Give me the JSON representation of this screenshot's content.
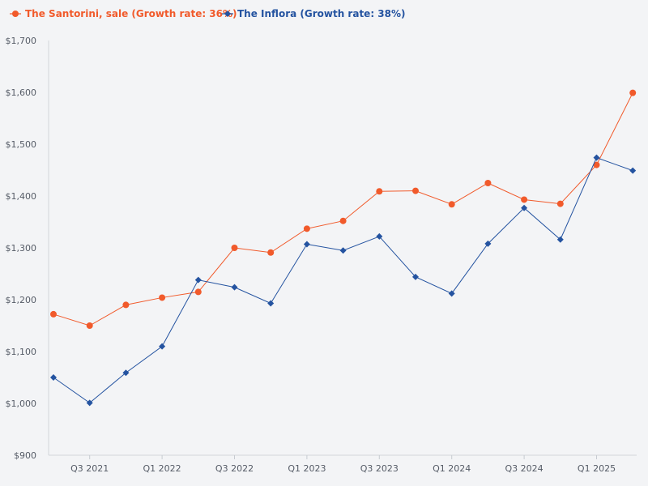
{
  "chart_data": {
    "type": "line",
    "title": "",
    "xlabel": "",
    "ylabel": "",
    "ylim": [
      900,
      1700
    ],
    "yticks": [
      900,
      1000,
      1100,
      1200,
      1300,
      1400,
      1500,
      1600,
      1700
    ],
    "ytick_labels": [
      "$900",
      "$1,000",
      "$1,100",
      "$1,200",
      "$1,300",
      "$1,400",
      "$1,500",
      "$1,600",
      "$1,700"
    ],
    "x_range": [
      0,
      16.35
    ],
    "xtick_positions": [
      1,
      3,
      5,
      7,
      9,
      11,
      13,
      15
    ],
    "xtick_labels": [
      "Q3 2021",
      "Q1 2022",
      "Q3 2022",
      "Q1 2023",
      "Q3 2023",
      "Q1 2024",
      "Q3 2024",
      "Q1 2025"
    ],
    "x": [
      0,
      1,
      2,
      3,
      4,
      5,
      6,
      7,
      8,
      9,
      10,
      11,
      12,
      13,
      14,
      15,
      16
    ],
    "legend_position": "top-left",
    "grid": false,
    "series": [
      {
        "name": "The Santorini, sale (Growth rate: 36%)",
        "color": "#f15a2b",
        "marker": "circle",
        "values": [
          1172,
          1150,
          1190,
          1204,
          1215,
          1300,
          1291,
          1337,
          1352,
          1409,
          1410,
          1384,
          1425,
          1393,
          1385,
          1460,
          1599
        ]
      },
      {
        "name": "The Inflora (Growth rate: 38%)",
        "color": "#2453a0",
        "marker": "diamond",
        "values": [
          1050,
          1001,
          1059,
          1110,
          1238,
          1224,
          1193,
          1307,
          1295,
          1322,
          1244,
          1212,
          1308,
          1377,
          1316,
          1474,
          1449
        ]
      }
    ]
  }
}
